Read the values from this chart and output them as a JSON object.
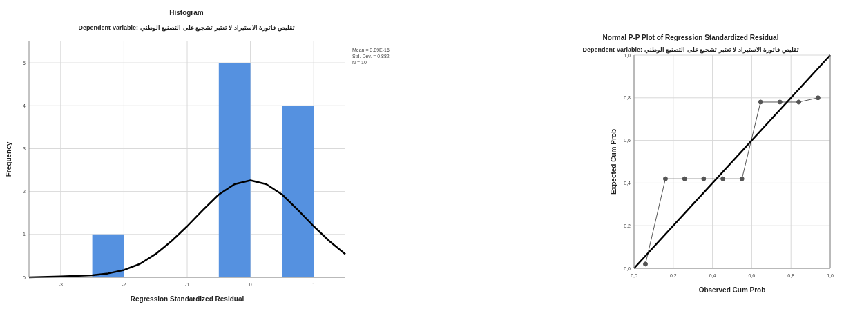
{
  "chart_data": [
    {
      "type": "histogram",
      "title": "Histogram",
      "subtitle": "Dependent Variable: تقليص فاتورة الاستيراد لا تعتبر تشجيع على التصنيع الوطني",
      "xlabel": "Regression Standardized Residual",
      "ylabel": "Frequency",
      "bins": [
        -3.5,
        -3,
        -2.5,
        -2,
        -1.5,
        -1,
        -0.5,
        0,
        0.5,
        1,
        1.5
      ],
      "values": [
        0,
        0,
        1,
        0,
        0,
        0,
        5,
        0,
        4,
        0
      ],
      "color": "#5591e0",
      "series": [
        {
          "type": "line",
          "color": "#000000",
          "x": [
            -3.5,
            -3,
            -2.5,
            -2.25,
            -2,
            -1.75,
            -1.5,
            -1.25,
            -1,
            -0.75,
            -0.5,
            -0.25,
            0,
            0.25,
            0.5,
            0.75,
            1,
            1.25,
            1.5
          ],
          "values": [
            0,
            0.02,
            0.05,
            0.09,
            0.17,
            0.31,
            0.54,
            0.84,
            1.19,
            1.57,
            1.93,
            2.17,
            2.26,
            2.17,
            1.93,
            1.57,
            1.19,
            0.84,
            0.54
          ]
        }
      ],
      "xlim": [
        -3.5,
        1.5
      ],
      "ylim": [
        0,
        5.5
      ],
      "xticks": [
        -3,
        -2,
        -1,
        0,
        1
      ],
      "yticks": [
        0,
        1,
        2,
        3,
        4,
        5
      ],
      "grid": true,
      "annotations": [
        "Mean = 3,89E-16",
        "Std. Dev. = 0,882",
        "N = 10"
      ]
    },
    {
      "type": "line",
      "title": "Normal P-P Plot of Regression Standardized Residual",
      "subtitle": "Dependent Variable: تقليص فاتورة الاستيراد لا تعتبر تشجيع على التصنيع الوطني",
      "xlabel": "Observed Cum Prob",
      "ylabel": "Expected Cum Prob",
      "series": [
        {
          "color": "#555555",
          "marker": "circle",
          "x": [
            0.058,
            0.16,
            0.258,
            0.355,
            0.453,
            0.55,
            0.645,
            0.744,
            0.84,
            0.938
          ],
          "values": [
            0.02,
            0.42,
            0.42,
            0.42,
            0.42,
            0.42,
            0.78,
            0.78,
            0.78,
            0.8
          ]
        },
        {
          "color": "#000000",
          "x": [
            0,
            1
          ],
          "values": [
            0,
            1
          ]
        }
      ],
      "xlim": [
        0,
        1
      ],
      "ylim": [
        0,
        1
      ],
      "xticks": [
        {
          "value": 0,
          "label": "0,0"
        },
        {
          "value": 0.2,
          "label": "0,2"
        },
        {
          "value": 0.4,
          "label": "0,4"
        },
        {
          "value": 0.6,
          "label": "0,6"
        },
        {
          "value": 0.8,
          "label": "0,8"
        },
        {
          "value": 1,
          "label": "1,0"
        }
      ],
      "yticks": [
        {
          "value": 0,
          "label": "0,0"
        },
        {
          "value": 0.2,
          "label": "0,2"
        },
        {
          "value": 0.4,
          "label": "0,4"
        },
        {
          "value": 0.6,
          "label": "0,6"
        },
        {
          "value": 0.8,
          "label": "0,8"
        },
        {
          "value": 1,
          "label": "1,0"
        }
      ],
      "grid": true
    }
  ]
}
